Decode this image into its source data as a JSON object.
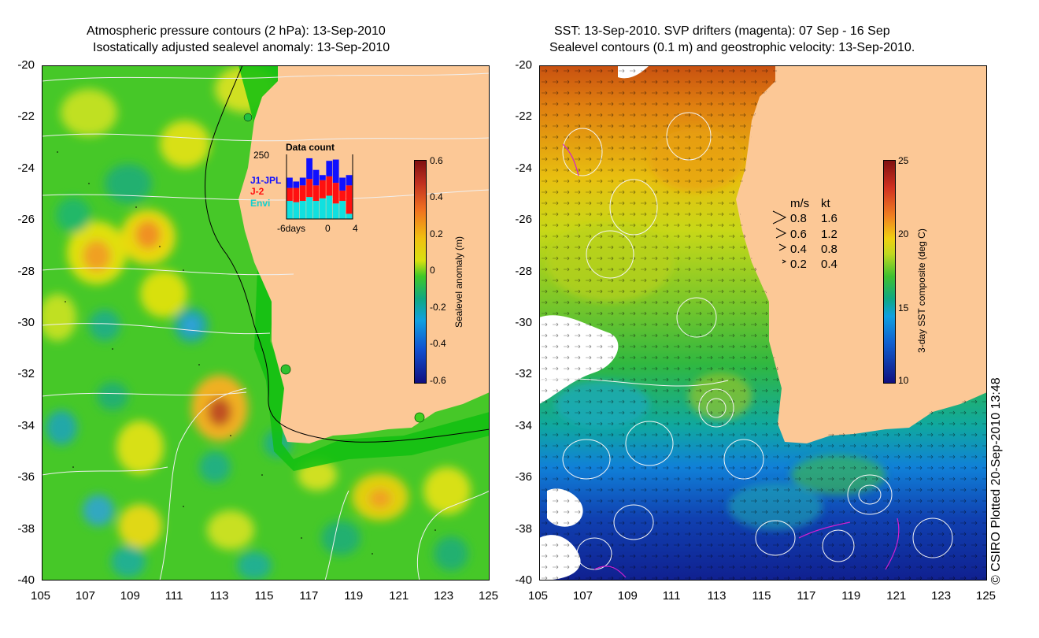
{
  "left_panel": {
    "title_line1": "Atmospheric pressure contours (2 hPa): 13-Sep-2010",
    "title_line2": "Isostatically adjusted sealevel anomaly: 13-Sep-2010",
    "colorbar": {
      "title": "Sealevel anomaly (m)",
      "ticks": [
        "0.6",
        "0.4",
        "0.2",
        "0",
        "-0.2",
        "-0.4",
        "-0.6"
      ]
    },
    "inset": {
      "title": "Data count",
      "ymax_label": "250",
      "xlabels": [
        "-6days",
        "0",
        "4"
      ],
      "series": [
        {
          "name": "J1-JPL",
          "color": "#1010ff"
        },
        {
          "name": "J-2",
          "color": "#ff1010"
        },
        {
          "name": "Envi",
          "color": "#10e0e0"
        }
      ],
      "bars": [
        {
          "envi": 70,
          "j2": 50,
          "j1": 40
        },
        {
          "envi": 65,
          "j2": 55,
          "j1": 25
        },
        {
          "envi": 70,
          "j2": 60,
          "j1": 30
        },
        {
          "envi": 85,
          "j2": 70,
          "j1": 80
        },
        {
          "envi": 70,
          "j2": 60,
          "j1": 60
        },
        {
          "envi": 80,
          "j2": 70,
          "j1": 20
        },
        {
          "envi": 90,
          "j2": 75,
          "j1": 60
        },
        {
          "envi": 60,
          "j2": 80,
          "j1": 90
        },
        {
          "envi": 70,
          "j2": 40,
          "j1": 50
        },
        {
          "envi": 20,
          "j2": 110,
          "j1": 40
        }
      ]
    }
  },
  "right_panel": {
    "title_line1": "SST: 13-Sep-2010. SVP drifters (magenta): 07 Sep - 16 Sep",
    "title_line2": "Sealevel contours (0.1 m) and geostrophic velocity: 13-Sep-2010.",
    "colorbar": {
      "title": "3-day SST composite (deg C)",
      "ticks": [
        "25",
        "20",
        "15",
        "10"
      ]
    },
    "velocity_legend": {
      "header_ms": "m/s",
      "header_kt": "kt",
      "rows": [
        {
          "ms": "0.8",
          "kt": "1.6"
        },
        {
          "ms": "0.6",
          "kt": "1.2"
        },
        {
          "ms": "0.4",
          "kt": "0.8"
        },
        {
          "ms": "0.2",
          "kt": "0.4"
        }
      ]
    }
  },
  "axes": {
    "x_ticks": [
      "105",
      "107",
      "109",
      "111",
      "113",
      "115",
      "117",
      "119",
      "121",
      "123",
      "125"
    ],
    "y_ticks": [
      "-20",
      "-22",
      "-24",
      "-26",
      "-28",
      "-30",
      "-32",
      "-34",
      "-36",
      "-38",
      "-40"
    ]
  },
  "copyright": "© CSIRO Plotted 20-Sep-2010 13:48",
  "colors": {
    "land": "#fcc896",
    "sla_zero": "#3ccc28",
    "coast_band": "#00cc00"
  }
}
